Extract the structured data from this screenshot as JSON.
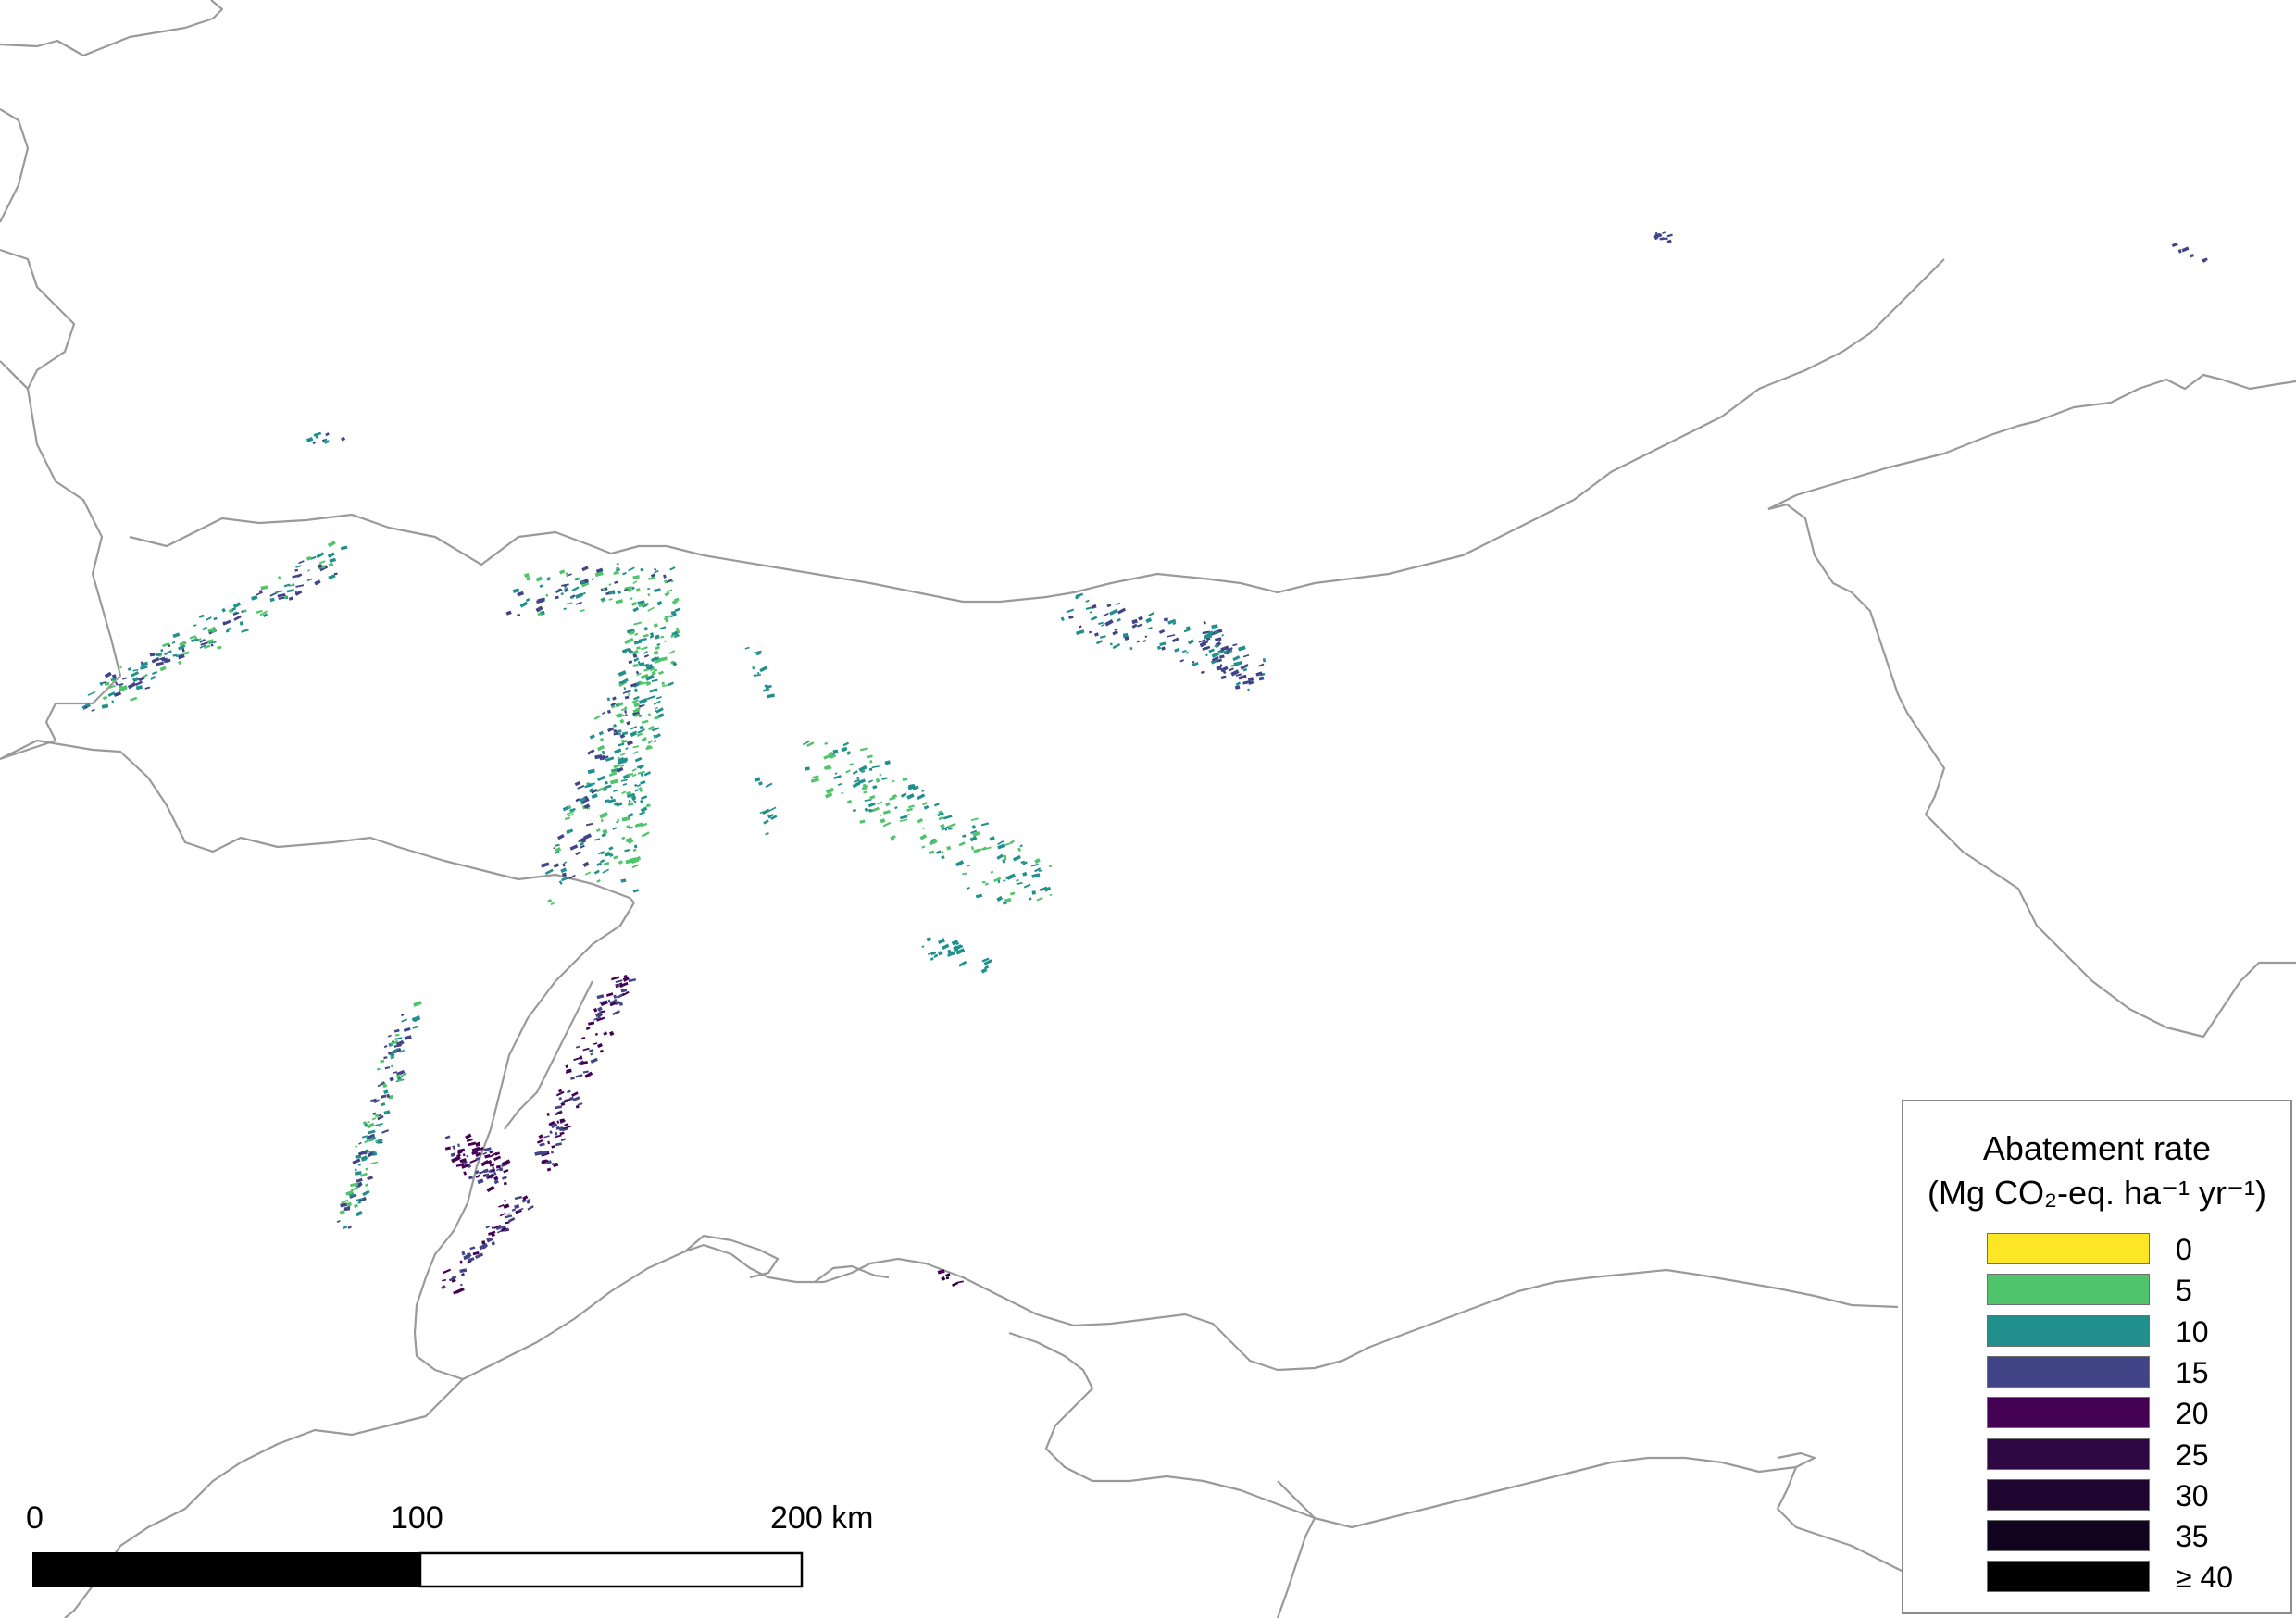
{
  "legend": {
    "title_line1": "Abatement rate",
    "title_line2": "(Mg CO₂-eq. ha⁻¹ yr⁻¹)",
    "items": [
      {
        "label": "0",
        "color": "#fde725"
      },
      {
        "label": "5",
        "color": "#4fc46a"
      },
      {
        "label": "10",
        "color": "#21908c"
      },
      {
        "label": "15",
        "color": "#414487"
      },
      {
        "label": "20",
        "color": "#440154"
      },
      {
        "label": "25",
        "color": "#2e0842"
      },
      {
        "label": "30",
        "color": "#1e0630"
      },
      {
        "label": "35",
        "color": "#12031e"
      },
      {
        "label": "≥ 40",
        "color": "#000000"
      }
    ]
  },
  "scale_bar": {
    "labels": [
      "0",
      "100",
      "200 km"
    ],
    "fill_colors": [
      "#000000",
      "#ffffff"
    ]
  },
  "colors": {
    "border_line": "#9a9a9a",
    "background": "#ffffff"
  }
}
